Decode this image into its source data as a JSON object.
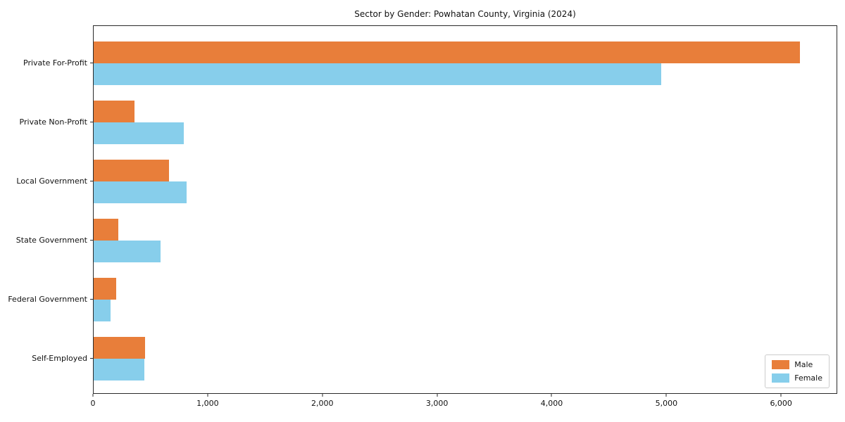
{
  "chart_data": {
    "type": "bar",
    "orientation": "horizontal",
    "title": "Sector by Gender: Powhatan County, Virginia (2024)",
    "xlabel": "",
    "ylabel": "",
    "categories": [
      "Private For-Profit",
      "Private Non-Profit",
      "Local Government",
      "State Government",
      "Federal Government",
      "Self-Employed"
    ],
    "series": [
      {
        "name": "Male",
        "color": "#e87e3a",
        "values": [
          6170,
          355,
          660,
          215,
          195,
          450
        ]
      },
      {
        "name": "Female",
        "color": "#87ceeb",
        "values": [
          4960,
          790,
          815,
          585,
          150,
          445
        ]
      }
    ],
    "xlim": [
      0,
      6490
    ],
    "x_ticks": [
      0,
      1000,
      2000,
      3000,
      4000,
      5000,
      6000
    ],
    "x_tick_labels": [
      "0",
      "1,000",
      "2,000",
      "3,000",
      "4,000",
      "5,000",
      "6,000"
    ],
    "grid": false,
    "legend_position": "lower right",
    "plot_border_color": "#2a2a2a",
    "background_color": "#ffffff"
  }
}
